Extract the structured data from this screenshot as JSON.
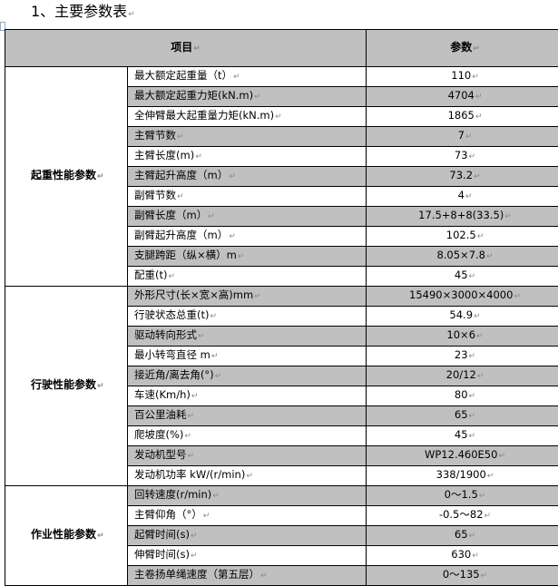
{
  "heading": "1、主要参数表",
  "table": {
    "headers": [
      "项目",
      "参数"
    ],
    "groups": [
      {
        "name": "起重性能参数",
        "rows": [
          {
            "item": "最大额定起重量（t）",
            "value": "110"
          },
          {
            "item": "最大额定起重力矩(kN.m)",
            "value": "4704"
          },
          {
            "item": "全伸臂最大起重量力矩(kN.m)",
            "value": "1865"
          },
          {
            "item": "主臂节数",
            "value": "7"
          },
          {
            "item": "主臂长度(m)",
            "value": "73"
          },
          {
            "item": "主臂起升高度（m）",
            "value": "73.2"
          },
          {
            "item": "副臂节数",
            "value": "4"
          },
          {
            "item": "副臂长度（m）",
            "value": "17.5+8+8(33.5)"
          },
          {
            "item": "副臂起升高度（m）",
            "value": "102.5"
          },
          {
            "item": "支腿跨距（纵×横）m",
            "value": "8.05×7.8"
          },
          {
            "item": "配重(t)",
            "value": "45"
          }
        ]
      },
      {
        "name": "行驶性能参数",
        "rows": [
          {
            "item": "外形尺寸(长×宽×高)mm",
            "value": "15490×3000×4000"
          },
          {
            "item": "行驶状态总重(t)",
            "value": "54.9"
          },
          {
            "item": "驱动转向形式",
            "value": "10×6"
          },
          {
            "item": "最小转弯直径 m",
            "value": "23"
          },
          {
            "item": "接近角/离去角(°)",
            "value": "20/12"
          },
          {
            "item": "车速(Km/h)",
            "value": "80"
          },
          {
            "item": "百公里油耗",
            "value": "65"
          },
          {
            "item": "爬坡度(%)",
            "value": "45"
          },
          {
            "item": "发动机型号",
            "value": "WP12.460E50"
          },
          {
            "item": "发动机功率 kW/(r/min)",
            "value": "338/1900"
          }
        ]
      },
      {
        "name": "作业性能参数",
        "rows": [
          {
            "item": "回转速度(r/min)",
            "value": "0～1.5"
          },
          {
            "item": "主臂仰角（°）",
            "value": "-0.5～82"
          },
          {
            "item": "起臂时间(s)",
            "value": "65"
          },
          {
            "item": "伸臂时间(s)",
            "value": "630"
          },
          {
            "item": "主卷扬单绳速度（第五层）",
            "value": "0～135"
          }
        ]
      }
    ]
  },
  "colors": {
    "shade": "#c0c0c0",
    "border": "#000000"
  }
}
